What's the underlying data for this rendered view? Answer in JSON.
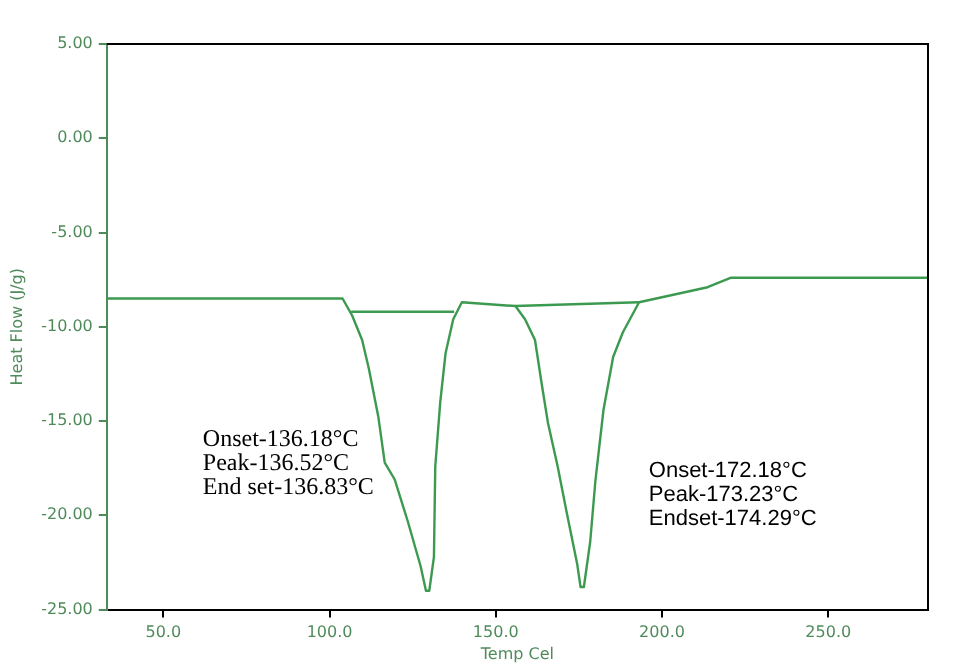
{
  "chart_data": {
    "type": "line",
    "xlabel": "Temp Cel",
    "ylabel": "Heat Flow (J/g)",
    "xlim": [
      33,
      280
    ],
    "ylim": [
      -25,
      5
    ],
    "xticks": [
      {
        "value": 50,
        "label": "50.0"
      },
      {
        "value": 100,
        "label": "100.0"
      },
      {
        "value": 150,
        "label": "150.0"
      },
      {
        "value": 200,
        "label": "200.0"
      },
      {
        "value": 250,
        "label": "250.0"
      }
    ],
    "yticks": [
      {
        "value": 5,
        "label": "5.00"
      },
      {
        "value": 0,
        "label": "0.00"
      },
      {
        "value": -5,
        "label": "-5.00"
      },
      {
        "value": -10,
        "label": "-10.00"
      },
      {
        "value": -15,
        "label": "-15.00"
      },
      {
        "value": -20,
        "label": "-20.00"
      },
      {
        "value": -25,
        "label": "-25.00"
      }
    ],
    "grid": false,
    "legend": false,
    "marker": "none",
    "line_style": "solid",
    "series": [
      {
        "color": "#3c9a50",
        "x": [
          33,
          103.9,
          106.8,
          109.8,
          111.8,
          114.7,
          116.6,
          119.6,
          123.5,
          127.4,
          129,
          130,
          131.4,
          131.8,
          133.3,
          134.9,
          137.2,
          139.8,
          155.9,
          158.8,
          161.8,
          163.7,
          165.7,
          168.6,
          171.5,
          174.5,
          175.5,
          176.5,
          178.4,
          180,
          182.4,
          185.3,
          188.2,
          193.1,
          213.7,
          220.6,
          280
        ],
        "values": [
          -8.5,
          -8.5,
          -9.4,
          -10.7,
          -12.2,
          -14.8,
          -17.2,
          -18.1,
          -20.3,
          -22.7,
          -24.0,
          -24.0,
          -22.2,
          -17.4,
          -14.0,
          -11.4,
          -9.6,
          -8.7,
          -8.9,
          -9.6,
          -10.7,
          -12.9,
          -15.1,
          -17.4,
          -20.0,
          -22.6,
          -23.8,
          -23.8,
          -21.4,
          -18.1,
          -14.4,
          -11.6,
          -10.3,
          -8.7,
          -7.9,
          -7.4,
          -7.4
        ]
      },
      {
        "color": "#3c9a50",
        "x": [
          106.5,
          137.5
        ],
        "values": [
          -9.2,
          -9.2
        ]
      },
      {
        "color": "#3c9a50",
        "x": [
          155.9,
          193.1
        ],
        "values": [
          -8.9,
          -8.7
        ]
      }
    ],
    "annotations": [
      "Onset-136.18°C",
      "Peak-136.52°C",
      "End set-136.83°C",
      "Onset-172.18°C",
      "Peak-173.23°C",
      "Endset-174.29°C"
    ]
  }
}
